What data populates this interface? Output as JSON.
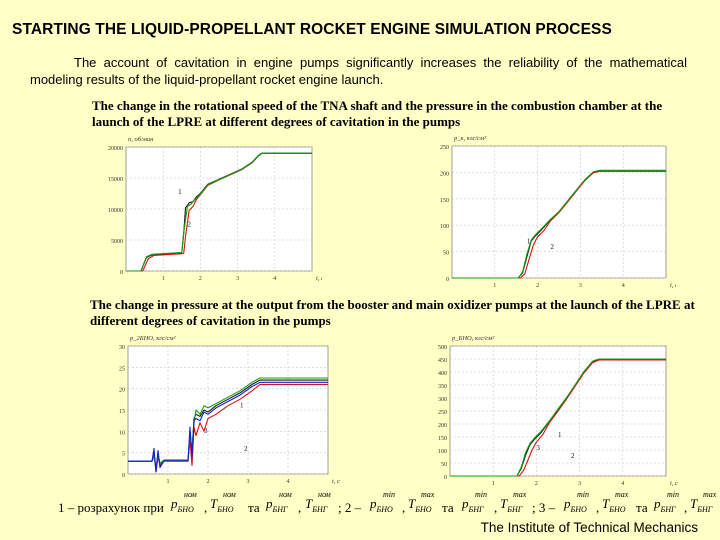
{
  "slide": {
    "title": "STARTING THE LIQUID-PROPELLANT ROCKET ENGINE SIMULATION PROCESS",
    "intro": "The account of cavitation in engine pumps significantly increases the reliability of the mathematical modeling results of the liquid-propellant rocket engine launch.",
    "caption_top": "The change in the rotational speed of the TNA shaft and the pressure in the combustion chamber at the launch of the LPRE at different degrees of cavitation in the pumps",
    "caption_bottom": "The change in pressure at the output from the booster and main oxidizer pumps at the launch of the LPRE at different degrees of cavitation in the pumps",
    "footer": "The Institute of Technical Mechanics"
  },
  "legend": {
    "item1_prefix": "1 – розрахунок при",
    "and_word": "та",
    "item2_prefix": "; 2 –",
    "item3_prefix": "; 3 –",
    "sym_nom": "ном",
    "sym_min": "min",
    "sym_max": "max",
    "p_bnh": "p",
    "t_bnh": "T",
    "sub_bnh": "БНО",
    "sub_bng": "БНГ",
    "sub_t_bnh": "БНО",
    "sub_t_bng": "БНГ"
  },
  "colors": {
    "background": "#ffffc6",
    "series1": "#1a1a1a",
    "series2": "#d81010",
    "series3": "#10a010",
    "series4": "#1020d0"
  },
  "chart_data": [
    {
      "type": "line",
      "ylabel": "n, об/мин",
      "xlabel": "t, c",
      "xlim": [
        0,
        5
      ],
      "ylim": [
        0,
        20000
      ],
      "x_ticks": [
        "1",
        "2",
        "3",
        "4"
      ],
      "y_ticks": [
        "0",
        "5000",
        "10000",
        "15000",
        "20000"
      ],
      "annotations": [
        "1",
        "2"
      ],
      "series": [
        {
          "x": [
            0,
            0.4,
            0.55,
            0.7,
            1.5,
            1.55,
            1.6,
            1.7,
            1.8,
            1.9,
            2.0,
            2.2,
            2.5,
            2.8,
            3.1,
            3.4,
            3.55,
            3.65,
            5.0
          ],
          "y": [
            0,
            0,
            2200,
            2600,
            2900,
            6000,
            10200,
            11000,
            11200,
            12000,
            12500,
            14000,
            14800,
            15600,
            16400,
            17600,
            18600,
            19000,
            19000
          ]
        },
        {
          "x": [
            0,
            0.45,
            0.6,
            0.75,
            1.55,
            1.6,
            1.7,
            1.8,
            1.9,
            2.0,
            2.2,
            2.5,
            2.8,
            3.1,
            3.4,
            3.55,
            3.65,
            5.0
          ],
          "y": [
            0,
            0,
            2000,
            2500,
            2800,
            5600,
            9800,
            10400,
            11600,
            12300,
            13800,
            14700,
            15500,
            16300,
            17500,
            18500,
            18950,
            18950
          ]
        },
        {
          "x": [
            0,
            0.4,
            0.55,
            0.7,
            1.5,
            1.55,
            1.65,
            1.75,
            1.9,
            2.0,
            2.2,
            2.5,
            2.8,
            3.1,
            3.4,
            3.55,
            3.65,
            5.0
          ],
          "y": [
            0,
            0,
            2300,
            2700,
            3000,
            6200,
            10400,
            10800,
            11800,
            12400,
            13900,
            14750,
            15550,
            16350,
            17550,
            18550,
            19000,
            19000
          ]
        }
      ]
    },
    {
      "type": "line",
      "ylabel": "p_к, кгс/см²",
      "xlabel": "t, c",
      "xlim": [
        0,
        5
      ],
      "ylim": [
        0,
        250
      ],
      "x_ticks": [
        "1",
        "2",
        "3",
        "4"
      ],
      "y_ticks": [
        "0",
        "50",
        "100",
        "150",
        "200",
        "250"
      ],
      "annotations": [
        "1",
        "2"
      ],
      "series": [
        {
          "x": [
            0,
            1.55,
            1.65,
            1.75,
            1.85,
            1.95,
            2.1,
            2.3,
            2.5,
            2.7,
            2.9,
            3.1,
            3.3,
            3.45,
            5.0
          ],
          "y": [
            0,
            0,
            10,
            40,
            70,
            80,
            92,
            110,
            125,
            145,
            165,
            185,
            200,
            203,
            203
          ]
        },
        {
          "x": [
            0,
            1.6,
            1.7,
            1.8,
            1.9,
            2.0,
            2.15,
            2.3,
            2.5,
            2.7,
            2.9,
            3.1,
            3.3,
            3.45,
            5.0
          ],
          "y": [
            0,
            0,
            8,
            35,
            62,
            78,
            90,
            108,
            124,
            144,
            164,
            184,
            199,
            202,
            202
          ]
        },
        {
          "x": [
            0,
            1.55,
            1.65,
            1.75,
            1.85,
            1.95,
            2.1,
            2.3,
            2.5,
            2.7,
            2.9,
            3.1,
            3.3,
            3.45,
            5.0
          ],
          "y": [
            0,
            0,
            12,
            45,
            72,
            82,
            94,
            111,
            126,
            146,
            166,
            186,
            201,
            204,
            204
          ]
        }
      ]
    },
    {
      "type": "line",
      "ylabel": "p_2БНО, кгс/см²",
      "xlabel": "t, c",
      "xlim": [
        0,
        5
      ],
      "ylim": [
        0,
        30
      ],
      "x_ticks": [
        "1",
        "2",
        "3",
        "4"
      ],
      "y_ticks": [
        "0",
        "5",
        "10",
        "15",
        "20",
        "25",
        "30"
      ],
      "annotations": [
        "1",
        "2",
        "3"
      ],
      "series": [
        {
          "x": [
            0,
            0.6,
            0.65,
            0.7,
            0.75,
            0.8,
            0.9,
            1.5,
            1.55,
            1.6,
            1.65,
            1.7,
            1.8,
            1.9,
            2.0,
            2.2,
            2.5,
            2.8,
            3.1,
            3.3,
            5.0
          ],
          "y": [
            3,
            3,
            4.5,
            1,
            5,
            2,
            3.2,
            3.2,
            10,
            5,
            13,
            14,
            13.5,
            15,
            14.5,
            16,
            17.5,
            19,
            21,
            22,
            22
          ]
        },
        {
          "x": [
            0,
            0.6,
            0.65,
            0.7,
            0.75,
            0.8,
            0.9,
            1.5,
            1.55,
            1.6,
            1.65,
            1.7,
            1.8,
            1.9,
            2.0,
            2.2,
            2.5,
            2.8,
            3.1,
            3.3,
            5.0
          ],
          "y": [
            3,
            3,
            5,
            0.5,
            4,
            2,
            3,
            3,
            8,
            2,
            11,
            9,
            12,
            10,
            13,
            14,
            16,
            17.5,
            19.5,
            21,
            21
          ]
        },
        {
          "x": [
            0,
            0.6,
            0.65,
            0.7,
            0.75,
            0.8,
            0.9,
            1.5,
            1.55,
            1.6,
            1.65,
            1.7,
            1.8,
            1.9,
            2.0,
            2.2,
            2.5,
            2.8,
            3.1,
            3.3,
            5.0
          ],
          "y": [
            3,
            3,
            4,
            1.5,
            4.5,
            2.5,
            3.3,
            3.3,
            9,
            6,
            12,
            15,
            14,
            16,
            15.5,
            16.5,
            18,
            19.5,
            21.5,
            22.5,
            22.5
          ]
        },
        {
          "x": [
            0,
            0.6,
            0.65,
            0.7,
            0.75,
            0.8,
            0.9,
            1.5,
            1.55,
            1.6,
            1.65,
            1.7,
            1.8,
            1.9,
            2.0,
            2.2,
            2.5,
            2.8,
            3.1,
            3.3,
            5.0
          ],
          "y": [
            3,
            3,
            6,
            0.5,
            5.5,
            1.5,
            3.1,
            3.1,
            11,
            4,
            12.5,
            13,
            12.5,
            14.5,
            14,
            15.5,
            17,
            18.5,
            20.5,
            21.5,
            21.5
          ]
        }
      ]
    },
    {
      "type": "line",
      "ylabel": "p_БНО, кгс/см²",
      "xlabel": "t, c",
      "xlim": [
        0,
        5
      ],
      "ylim": [
        0,
        500
      ],
      "x_ticks": [
        "1",
        "2",
        "3",
        "4"
      ],
      "y_ticks": [
        "0",
        "50",
        "100",
        "150",
        "200",
        "250",
        "300",
        "350",
        "400",
        "450",
        "500"
      ],
      "annotations": [
        "1",
        "2",
        "3"
      ],
      "series": [
        {
          "x": [
            0,
            1.55,
            1.65,
            1.75,
            1.85,
            1.95,
            2.1,
            2.3,
            2.5,
            2.7,
            2.9,
            3.1,
            3.3,
            3.45,
            5.0
          ],
          "y": [
            0,
            0,
            30,
            80,
            120,
            140,
            165,
            210,
            255,
            300,
            350,
            400,
            440,
            448,
            448
          ]
        },
        {
          "x": [
            0,
            1.6,
            1.7,
            1.8,
            1.9,
            2.0,
            2.15,
            2.3,
            2.5,
            2.7,
            2.9,
            3.1,
            3.3,
            3.45,
            5.0
          ],
          "y": [
            0,
            0,
            20,
            60,
            100,
            130,
            160,
            205,
            250,
            296,
            346,
            396,
            436,
            446,
            446
          ]
        },
        {
          "x": [
            0,
            1.55,
            1.65,
            1.75,
            1.85,
            1.95,
            2.1,
            2.3,
            2.5,
            2.7,
            2.9,
            3.1,
            3.3,
            3.45,
            5.0
          ],
          "y": [
            0,
            0,
            35,
            90,
            125,
            145,
            170,
            212,
            258,
            302,
            352,
            402,
            442,
            450,
            450
          ]
        }
      ]
    }
  ]
}
